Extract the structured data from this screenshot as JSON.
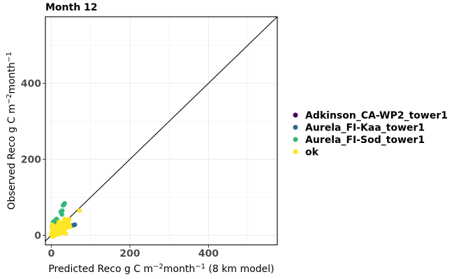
{
  "chart_data": {
    "type": "scatter",
    "title": "Month 12",
    "xlabel": "Predicted Reco g C m⁻²month⁻¹ (8 km model)",
    "xlabel_parts": [
      "Predicted Reco g C m",
      "−2",
      "month",
      "−1",
      " (8 km model)"
    ],
    "ylabel": "Observed Reco g C m⁻²month⁻¹",
    "ylabel_parts": [
      "Observed Reco g C m",
      "−2",
      "month",
      "−1"
    ],
    "xlim": [
      -15,
      575
    ],
    "ylim": [
      -25,
      575
    ],
    "xticks": [
      0,
      200,
      400
    ],
    "yticks": [
      0,
      200,
      400
    ],
    "xtick_labels": [
      "0",
      "200",
      "400"
    ],
    "ytick_labels": [
      "0",
      "200",
      "400"
    ],
    "grid": true,
    "identity_line": true,
    "legend_position": "right",
    "series": [
      {
        "name": "Adkinson_CA-WP2_tower1",
        "color": "#440154",
        "points": []
      },
      {
        "name": "Aurela_FI-Kaa_tower1",
        "color": "#31688e",
        "points": [
          [
            57,
            27
          ],
          [
            60,
            28
          ],
          [
            54,
            26
          ]
        ]
      },
      {
        "name": "Aurela_FI-Sod_tower1",
        "color": "#35b779",
        "points": [
          [
            34,
            84
          ],
          [
            32,
            80
          ],
          [
            30,
            79
          ],
          [
            28,
            65
          ],
          [
            24,
            62
          ],
          [
            27,
            55
          ],
          [
            13,
            43
          ],
          [
            8,
            38
          ],
          [
            5,
            35
          ],
          [
            4,
            33
          ],
          [
            6,
            31
          ],
          [
            3,
            28
          ],
          [
            2,
            22
          ],
          [
            10,
            36
          ],
          [
            15,
            41
          ]
        ]
      },
      {
        "name": "ok",
        "color": "#fde725",
        "points": [
          [
            72,
            65
          ],
          [
            45,
            42
          ],
          [
            40,
            38
          ],
          [
            38,
            30
          ],
          [
            36,
            25
          ],
          [
            34,
            43
          ],
          [
            30,
            35
          ],
          [
            28,
            28
          ],
          [
            26,
            20
          ],
          [
            24,
            15
          ],
          [
            22,
            25
          ],
          [
            20,
            18
          ],
          [
            18,
            10
          ],
          [
            16,
            22
          ],
          [
            14,
            12
          ],
          [
            12,
            5
          ],
          [
            10,
            15
          ],
          [
            8,
            8
          ],
          [
            6,
            3
          ],
          [
            5,
            0
          ],
          [
            4,
            12
          ],
          [
            3,
            20
          ],
          [
            2,
            28
          ],
          [
            1,
            5
          ],
          [
            0,
            2
          ],
          [
            3,
            -2
          ],
          [
            6,
            -3
          ],
          [
            9,
            1
          ],
          [
            11,
            7
          ],
          [
            13,
            18
          ],
          [
            17,
            28
          ],
          [
            19,
            35
          ],
          [
            21,
            30
          ],
          [
            23,
            8
          ],
          [
            25,
            4
          ],
          [
            27,
            12
          ],
          [
            29,
            22
          ],
          [
            31,
            14
          ],
          [
            33,
            10
          ],
          [
            35,
            18
          ],
          [
            37,
            5
          ],
          [
            39,
            20
          ],
          [
            42,
            25
          ],
          [
            44,
            32
          ],
          [
            46,
            28
          ],
          [
            48,
            22
          ],
          [
            15,
            2
          ],
          [
            18,
            4
          ],
          [
            7,
            24
          ],
          [
            2,
            14
          ]
        ]
      }
    ]
  }
}
